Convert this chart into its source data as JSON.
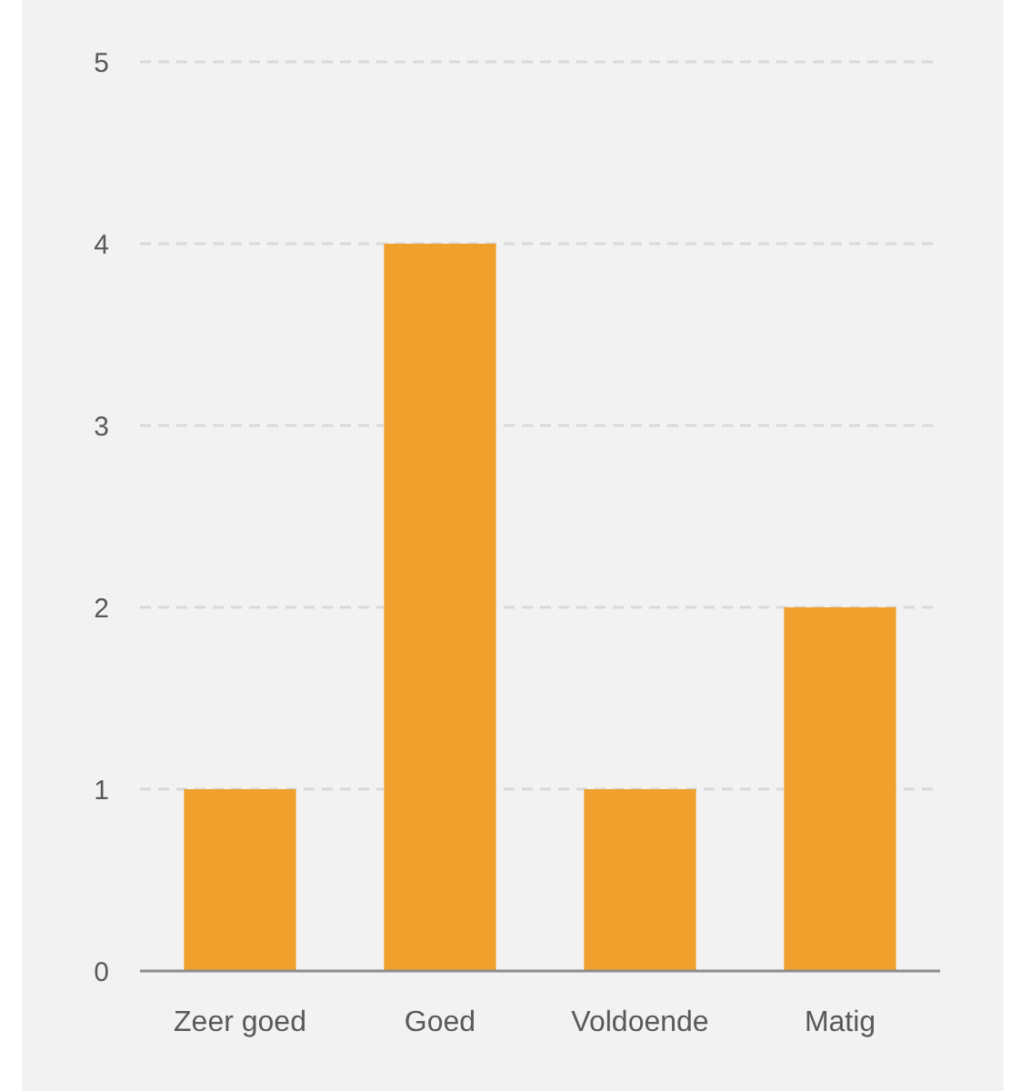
{
  "chart_data": {
    "type": "bar",
    "categories": [
      "Zeer goed",
      "Goed",
      "Voldoende",
      "Matig"
    ],
    "values": [
      1,
      4,
      1,
      2
    ],
    "color": "#f0a02d",
    "ylim": [
      0,
      5
    ],
    "yticks": [
      0,
      1,
      2,
      3,
      4,
      5
    ],
    "grid": "y"
  }
}
